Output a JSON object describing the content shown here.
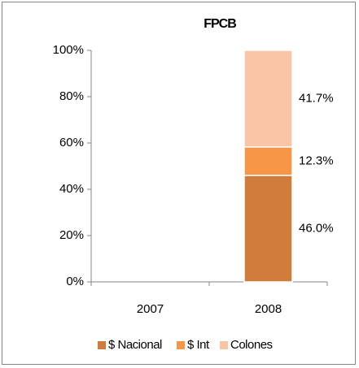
{
  "chart_data": {
    "type": "stacked-bar",
    "title": "FPCB",
    "categories": [
      "2007",
      "2008"
    ],
    "series": [
      {
        "name": "$ Nacional",
        "color": "#cf7b3c",
        "values": [
          null,
          46.0
        ],
        "value_labels": [
          null,
          "46.0%"
        ]
      },
      {
        "name": "$ Int",
        "color": "#f79646",
        "values": [
          null,
          12.3
        ],
        "value_labels": [
          null,
          "12.3%"
        ]
      },
      {
        "name": "Colones",
        "color": "#fac4a6",
        "values": [
          null,
          41.7
        ],
        "value_labels": [
          null,
          "41.7%"
        ]
      }
    ],
    "ylim": [
      0,
      100
    ],
    "yticks": [
      {
        "value": 0,
        "label": "0%"
      },
      {
        "value": 20,
        "label": "20%"
      },
      {
        "value": 40,
        "label": "40%"
      },
      {
        "value": 60,
        "label": "60%"
      },
      {
        "value": 80,
        "label": "80%"
      },
      {
        "value": 100,
        "label": "100%"
      }
    ],
    "grid": false,
    "legend": "bottom"
  }
}
